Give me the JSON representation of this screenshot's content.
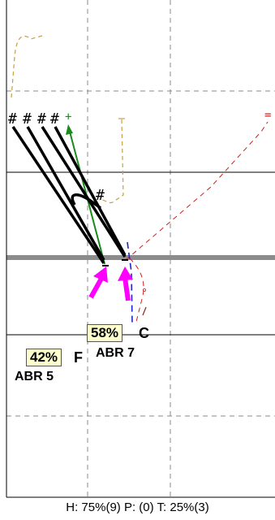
{
  "colors": {
    "grid": "#888888",
    "thick_band": "#8c8c8c",
    "label_box": "#ffffcc",
    "tan_path": "#c8a040",
    "green_path": "#1a8a1a",
    "red_path": "#cc2222",
    "blue_path": "#2222cc",
    "magenta": "#ff00ff"
  },
  "hash_marks": [
    "#",
    "#",
    "#",
    "#"
  ],
  "mid_hash": "#",
  "plus_green": "+",
  "equals_red": "=",
  "dash_tan": "-",
  "option_c": {
    "percent": "58%",
    "code": "C",
    "abbr": "ABR 7"
  },
  "option_f": {
    "percent": "42%",
    "code": "F",
    "abbr": "ABR 5"
  },
  "footer": "H: 75%(9)  P: (0)  T: 25%(3)"
}
